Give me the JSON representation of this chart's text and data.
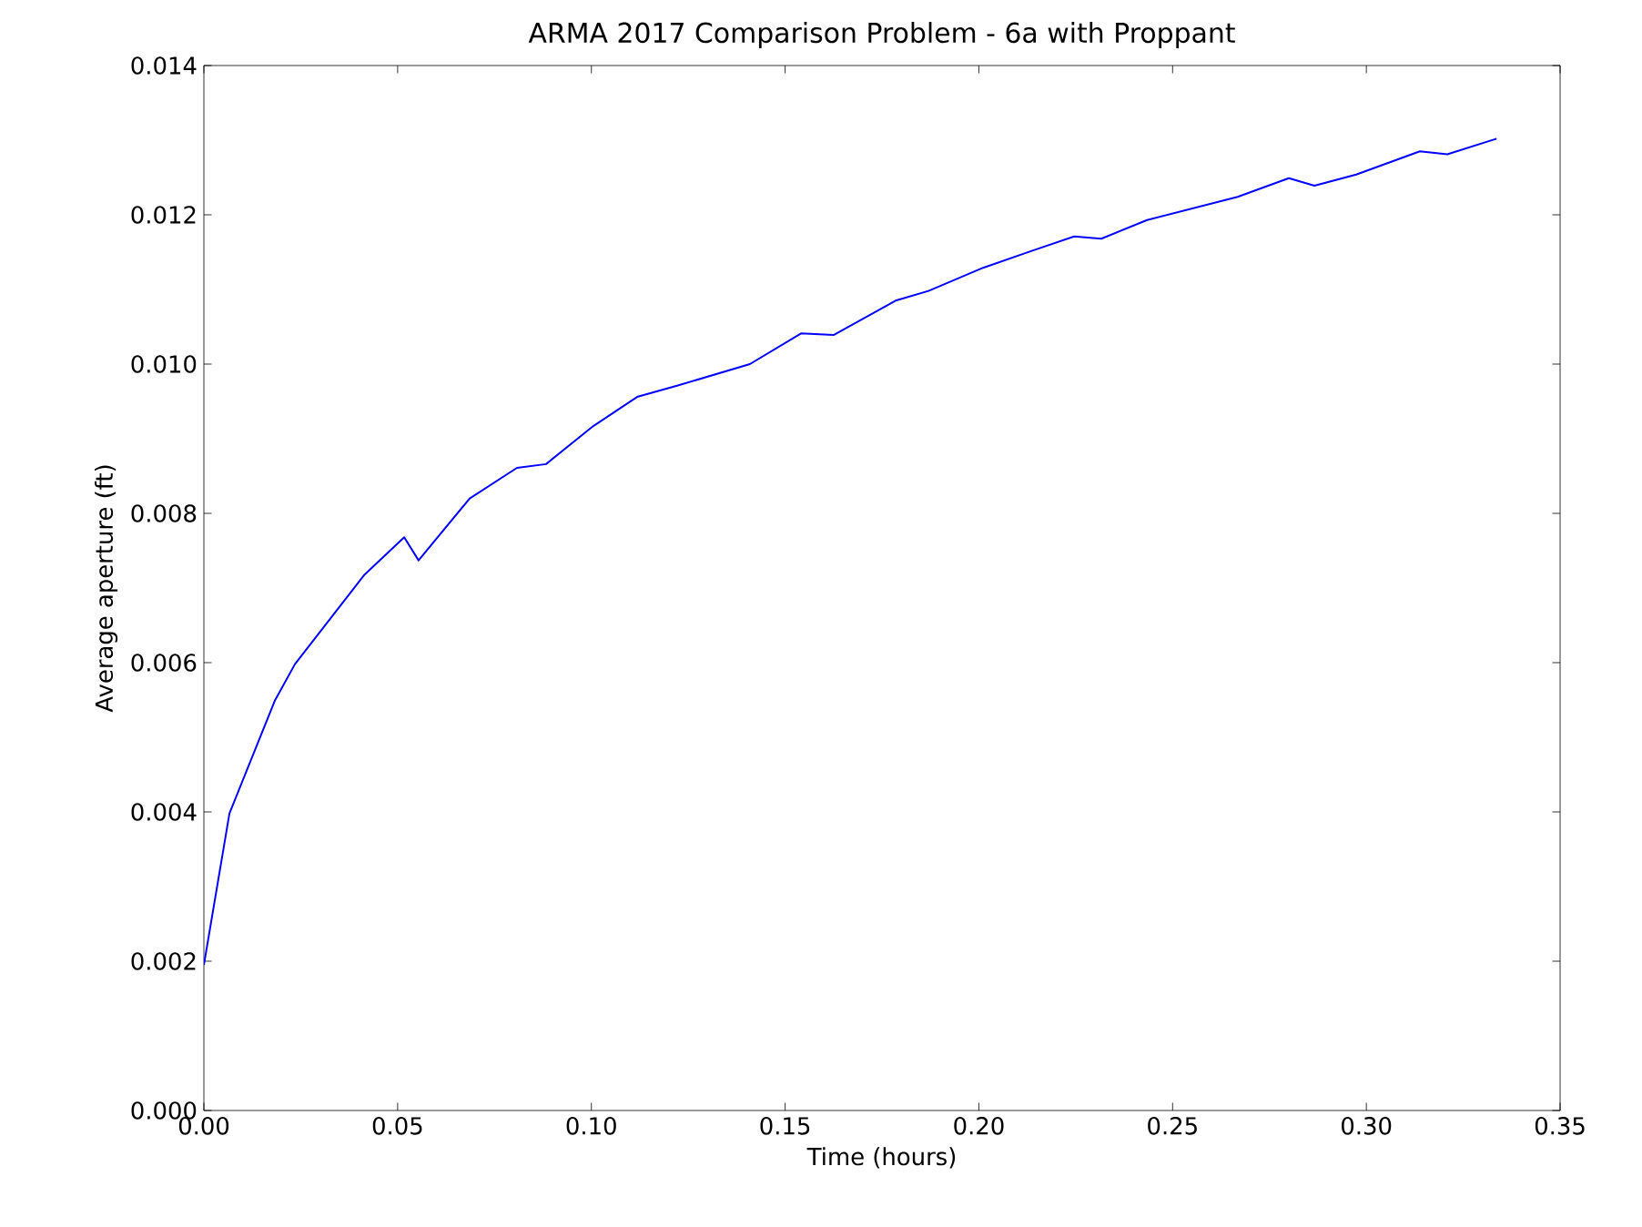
{
  "chart_data": {
    "type": "line",
    "title": "ARMA 2017 Comparison Problem - 6a with Proppant",
    "xlabel": "Time (hours)",
    "ylabel": "Average aperture (ft)",
    "x": [
      0.0,
      0.0066,
      0.0183,
      0.0235,
      0.0413,
      0.0517,
      0.0554,
      0.0686,
      0.0808,
      0.0883,
      0.1005,
      0.1118,
      0.1221,
      0.1409,
      0.1541,
      0.1625,
      0.1785,
      0.187,
      0.2011,
      0.2133,
      0.2246,
      0.2316,
      0.2434,
      0.2668,
      0.28,
      0.2866,
      0.2974,
      0.3138,
      0.3209,
      0.3336
    ],
    "series": [
      {
        "color": "#0000ff",
        "values": [
          0.00195,
          0.00398,
          0.00549,
          0.00598,
          0.00717,
          0.00768,
          0.00737,
          0.0082,
          0.00861,
          0.00866,
          0.00917,
          0.00956,
          0.00971,
          0.01,
          0.01041,
          0.01039,
          0.01085,
          0.01098,
          0.01129,
          0.01151,
          0.01171,
          0.01168,
          0.01193,
          0.01224,
          0.01249,
          0.01239,
          0.01254,
          0.01285,
          0.01281,
          0.01302
        ]
      }
    ],
    "xlim": [
      0,
      0.35
    ],
    "ylim": [
      0,
      0.014
    ],
    "xticks": [
      {
        "value": 0,
        "label": "0.00"
      },
      {
        "value": 0.05,
        "label": "0.05"
      },
      {
        "value": 0.1,
        "label": "0.10"
      },
      {
        "value": 0.15,
        "label": "0.15"
      },
      {
        "value": 0.2,
        "label": "0.20"
      },
      {
        "value": 0.25,
        "label": "0.25"
      },
      {
        "value": 0.3,
        "label": "0.30"
      },
      {
        "value": 0.35,
        "label": "0.35"
      }
    ],
    "yticks": [
      {
        "value": 0,
        "label": "0.000"
      },
      {
        "value": 0.002,
        "label": "0.002"
      },
      {
        "value": 0.004,
        "label": "0.004"
      },
      {
        "value": 0.006,
        "label": "0.006"
      },
      {
        "value": 0.008,
        "label": "0.008"
      },
      {
        "value": 0.01,
        "label": "0.010"
      },
      {
        "value": 0.012,
        "label": "0.012"
      },
      {
        "value": 0.014,
        "label": "0.014"
      }
    ],
    "marker": "none",
    "line_style": "solid"
  }
}
